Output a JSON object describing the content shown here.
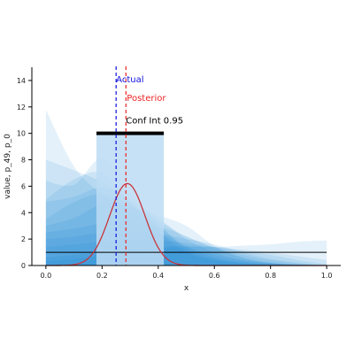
{
  "chart_data": {
    "type": "line",
    "title": "",
    "xlabel": "x",
    "ylabel": "value, p_49, p_0",
    "xlim": [
      -0.05,
      1.05
    ],
    "ylim": [
      0,
      15
    ],
    "xticks": [
      "0.0",
      "0.2",
      "0.4",
      "0.6",
      "0.8",
      "1.0"
    ],
    "yticks": [
      "0",
      "2",
      "4",
      "6",
      "8",
      "10",
      "12",
      "14"
    ],
    "grid": false,
    "colors": {
      "bands": "#0a7fd6",
      "interval_fill": "#bcdcf3",
      "interval_bar": "#000000",
      "actual": "#1010e0",
      "posterior_line": "#ee2222",
      "posterior_curve": "#c8363c",
      "baseline": "#000000"
    },
    "annotations": {
      "actual_label": "Actual",
      "posterior_label": "Posterior",
      "interval_label": "Conf Int 0.95"
    },
    "actual_x": 0.25,
    "posterior_x": 0.285,
    "conf_int": {
      "lower": 0.18,
      "upper": 0.42,
      "height": 10
    },
    "posterior_curve": {
      "mean": 0.29,
      "sd": 0.063,
      "peak": 6.2
    },
    "prior_baseline": 1,
    "sample_bands": [
      {
        "x": [
          0,
          0.1,
          0.2,
          0.3,
          0.4,
          0.5,
          0.6,
          0.7,
          0.8,
          0.9,
          1.0
        ],
        "y": [
          11.8,
          7.5,
          5.4,
          4.2,
          2.6,
          1.4,
          0.6,
          0.25,
          0.1,
          0.05,
          0
        ]
      },
      {
        "x": [
          0,
          0.1,
          0.2,
          0.3,
          0.4,
          0.5,
          0.6,
          0.7,
          0.8,
          0.9,
          1.0
        ],
        "y": [
          8.0,
          7.2,
          6.3,
          4.8,
          3.0,
          1.5,
          0.8,
          0.4,
          0.2,
          0.08,
          0
        ]
      },
      {
        "x": [
          0,
          0.1,
          0.2,
          0.3,
          0.4,
          0.5,
          0.6,
          0.7,
          0.8,
          0.9,
          1.0
        ],
        "y": [
          6.4,
          6.1,
          8.1,
          5.4,
          3.2,
          1.2,
          0.5,
          0.2,
          0.1,
          0.05,
          0
        ]
      },
      {
        "x": [
          0,
          0.1,
          0.2,
          0.3,
          0.4,
          0.5,
          0.6,
          0.7,
          0.8,
          0.9,
          1.0
        ],
        "y": [
          5.0,
          6.5,
          7.0,
          4.8,
          2.6,
          1.0,
          0.4,
          0.15,
          0.05,
          0.02,
          0
        ]
      },
      {
        "x": [
          0,
          0.1,
          0.2,
          0.3,
          0.4,
          0.5,
          0.6,
          0.7,
          0.8,
          0.9,
          1.0
        ],
        "y": [
          4.8,
          5.2,
          5.9,
          5.0,
          3.6,
          2.0,
          1.0,
          0.4,
          0.15,
          0.05,
          0
        ]
      },
      {
        "x": [
          0,
          0.1,
          0.2,
          0.3,
          0.4,
          0.5,
          0.6,
          0.7,
          0.8,
          0.9,
          1.0
        ],
        "y": [
          3.5,
          4.8,
          5.4,
          4.6,
          3.4,
          2.2,
          1.4,
          0.8,
          0.4,
          0.15,
          0
        ]
      },
      {
        "x": [
          0,
          0.1,
          0.2,
          0.3,
          0.4,
          0.5,
          0.6,
          0.7,
          0.8,
          0.9,
          1.0
        ],
        "y": [
          3.0,
          3.6,
          4.6,
          4.4,
          3.8,
          3.0,
          1.5,
          0.6,
          0.2,
          0.05,
          0
        ]
      },
      {
        "x": [
          0,
          0.1,
          0.2,
          0.3,
          0.4,
          0.5,
          0.6,
          0.7,
          0.8,
          0.9,
          1.0
        ],
        "y": [
          2.5,
          2.8,
          3.2,
          3.4,
          3.0,
          2.2,
          1.3,
          0.6,
          0.2,
          0.05,
          0
        ]
      },
      {
        "x": [
          0,
          0.1,
          0.2,
          0.3,
          0.4,
          0.5,
          0.6,
          0.7,
          0.8,
          0.9,
          1.0
        ],
        "y": [
          2.0,
          2.2,
          2.5,
          2.6,
          2.4,
          2.0,
          1.6,
          1.0,
          0.5,
          0.2,
          0
        ]
      },
      {
        "x": [
          0,
          0.1,
          0.2,
          0.3,
          0.4,
          0.5,
          0.6,
          0.7,
          0.8,
          0.9,
          1.0
        ],
        "y": [
          1.4,
          1.6,
          1.8,
          1.9,
          1.9,
          1.7,
          1.4,
          1.1,
          0.8,
          0.4,
          0.1
        ]
      },
      {
        "x": [
          0,
          0.1,
          0.2,
          0.3,
          0.4,
          0.5,
          0.6,
          0.7,
          0.8,
          0.9,
          1.0
        ],
        "y": [
          0.6,
          0.8,
          1.0,
          1.2,
          1.3,
          1.4,
          1.4,
          1.5,
          1.6,
          1.8,
          1.9
        ]
      },
      {
        "x": [
          0,
          0.1,
          0.2,
          0.3,
          0.4,
          0.5,
          0.6,
          0.7,
          0.8,
          0.9,
          1.0
        ],
        "y": [
          0.3,
          0.5,
          0.8,
          1.1,
          1.4,
          1.5,
          1.4,
          1.2,
          1.0,
          0.7,
          0.4
        ]
      }
    ]
  }
}
